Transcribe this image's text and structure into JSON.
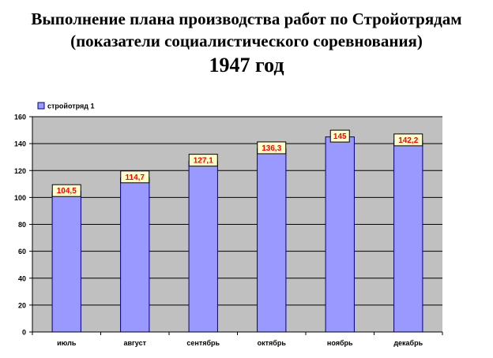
{
  "header": {
    "title_line1": "Выполнение плана производства работ по Стройотрядам",
    "title_line2": "(показатели социалистического соревнования)",
    "year": "1947 год"
  },
  "colors": {
    "bar_fill": "#9999FF",
    "bar_stroke": "#000080",
    "plot_background": "#C0C0C0",
    "data_label_text": "#FF0000",
    "data_label_bg": "#FFFFCC"
  },
  "chart_data": {
    "type": "bar",
    "categories": [
      "июль",
      "август",
      "сентябрь",
      "октябрь",
      "ноябрь",
      "декабрь"
    ],
    "series": [
      {
        "name": "стройотряд 1",
        "values": [
          104.5,
          114.7,
          127.1,
          136.3,
          145,
          142.2
        ]
      }
    ],
    "data_labels": [
      "104,5",
      "114,7",
      "127,1",
      "136,3",
      "145",
      "142,2"
    ],
    "ylim": [
      0,
      160
    ],
    "yticks": [
      0,
      20,
      40,
      60,
      80,
      100,
      120,
      140,
      160
    ],
    "grid": true,
    "legend_position": "top-left"
  }
}
